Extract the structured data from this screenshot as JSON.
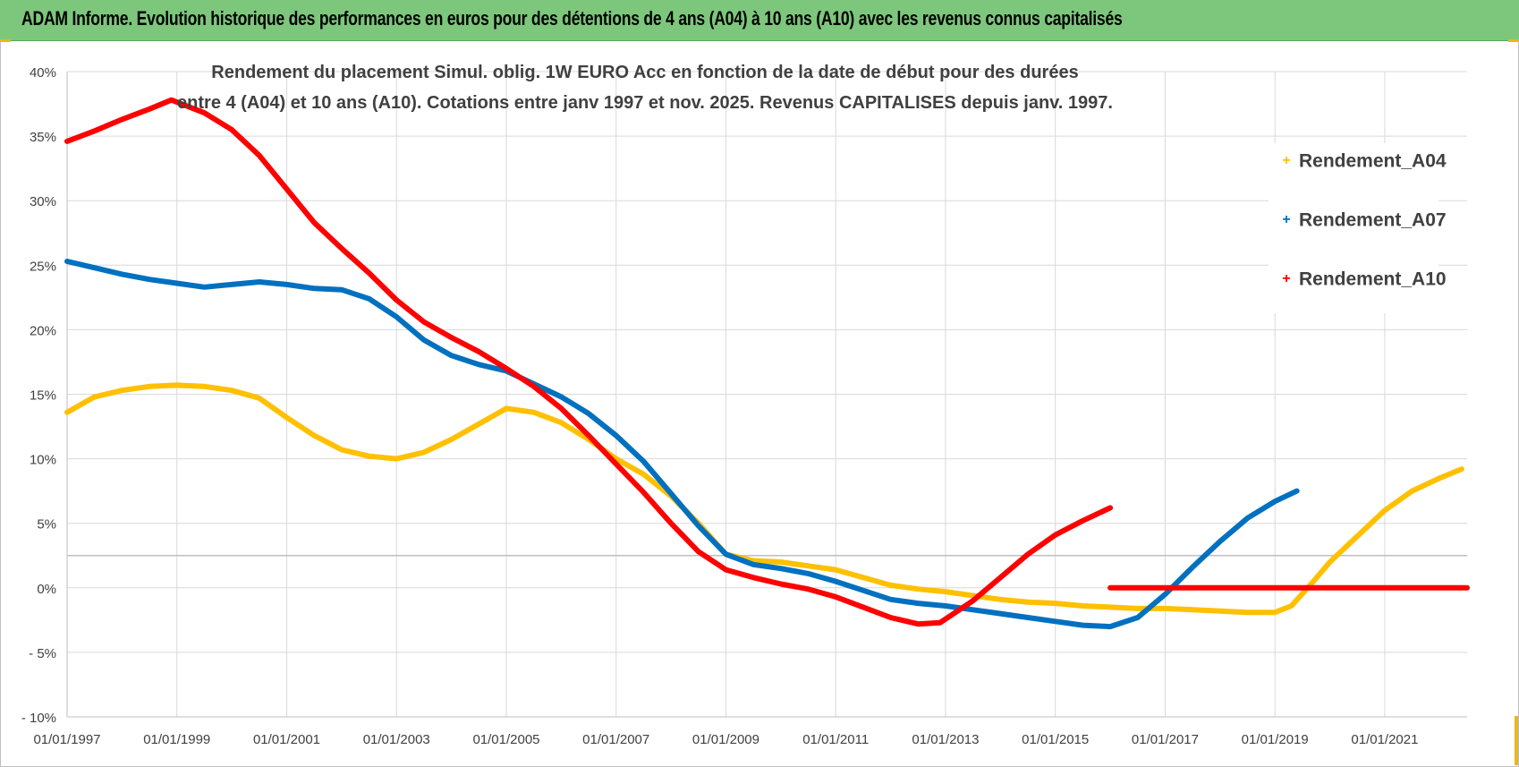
{
  "banner": {
    "title": "ADAM Informe. Evolution historique des performances en euros pour des détentions de 4 ans (A04) à 10 ans (A10) avec les revenus connus capitalisés"
  },
  "colors": {
    "banner_bg": "#7dc77c",
    "A04": "#ffc000",
    "A07": "#0070c0",
    "A10": "#ff0000",
    "grid": "#d9d9d9",
    "axis_text": "#404040"
  },
  "chart_data": {
    "type": "line",
    "title_line1": "Rendement du placement Simul. oblig. 1W EURO Acc en fonction de la date de début pour des durées",
    "title_line2": "entre 4 (A04) et 10 ans (A10). Cotations entre janv 1997 et nov. 2025. Revenus CAPITALISES depuis janv. 1997.",
    "xlabel": "",
    "ylabel": "",
    "x_range": [
      1997.0,
      2022.5
    ],
    "x_tick_years": [
      1997,
      1999,
      2001,
      2003,
      2005,
      2007,
      2009,
      2011,
      2013,
      2015,
      2017,
      2019,
      2021
    ],
    "x_tick_labels": [
      "01/01/1997",
      "01/01/1999",
      "01/01/2001",
      "01/01/2003",
      "01/01/2005",
      "01/01/2007",
      "01/01/2009",
      "01/01/2011",
      "01/01/2013",
      "01/01/2015",
      "01/01/2017",
      "01/01/2019",
      "01/01/2021"
    ],
    "ylim": [
      -10,
      40
    ],
    "y_ticks": [
      40,
      35,
      30,
      25,
      20,
      15,
      10,
      5,
      0,
      -5,
      -10
    ],
    "y_tick_labels": [
      "40%",
      "35%",
      "30%",
      "25%",
      "20%",
      "15%",
      "10%",
      "5%",
      "0%",
      "- 5%",
      "- 10%"
    ],
    "extra_reference_line_y": 2.5,
    "legend_position": "right",
    "series": [
      {
        "name": "Rendement_A04",
        "color": "#ffc000",
        "points": [
          [
            1997.0,
            13.6
          ],
          [
            1997.5,
            14.8
          ],
          [
            1998.0,
            15.3
          ],
          [
            1998.5,
            15.6
          ],
          [
            1999.0,
            15.7
          ],
          [
            1999.5,
            15.6
          ],
          [
            2000.0,
            15.3
          ],
          [
            2000.5,
            14.7
          ],
          [
            2001.0,
            13.2
          ],
          [
            2001.5,
            11.8
          ],
          [
            2002.0,
            10.7
          ],
          [
            2002.5,
            10.2
          ],
          [
            2003.0,
            10.0
          ],
          [
            2003.5,
            10.5
          ],
          [
            2004.0,
            11.5
          ],
          [
            2004.5,
            12.7
          ],
          [
            2005.0,
            13.9
          ],
          [
            2005.5,
            13.6
          ],
          [
            2006.0,
            12.8
          ],
          [
            2006.5,
            11.5
          ],
          [
            2007.0,
            10.0
          ],
          [
            2007.5,
            8.8
          ],
          [
            2008.0,
            7.1
          ],
          [
            2008.5,
            5.0
          ],
          [
            2009.0,
            2.6
          ],
          [
            2009.5,
            2.1
          ],
          [
            2010.0,
            2.0
          ],
          [
            2010.5,
            1.7
          ],
          [
            2011.0,
            1.4
          ],
          [
            2011.5,
            0.8
          ],
          [
            2012.0,
            0.2
          ],
          [
            2012.5,
            -0.1
          ],
          [
            2013.0,
            -0.3
          ],
          [
            2013.5,
            -0.6
          ],
          [
            2014.0,
            -0.9
          ],
          [
            2014.5,
            -1.1
          ],
          [
            2015.0,
            -1.2
          ],
          [
            2015.5,
            -1.4
          ],
          [
            2016.0,
            -1.5
          ],
          [
            2016.5,
            -1.6
          ],
          [
            2017.0,
            -1.6
          ],
          [
            2017.5,
            -1.7
          ],
          [
            2018.0,
            -1.8
          ],
          [
            2018.5,
            -1.9
          ],
          [
            2019.0,
            -1.9
          ],
          [
            2019.3,
            -1.4
          ],
          [
            2019.7,
            0.5
          ],
          [
            2020.0,
            2.0
          ],
          [
            2020.5,
            4.0
          ],
          [
            2021.0,
            6.0
          ],
          [
            2021.5,
            7.5
          ],
          [
            2022.0,
            8.5
          ],
          [
            2022.4,
            9.2
          ]
        ]
      },
      {
        "name": "Rendement_A07",
        "color": "#0070c0",
        "points": [
          [
            1997.0,
            25.3
          ],
          [
            1997.5,
            24.8
          ],
          [
            1998.0,
            24.3
          ],
          [
            1998.5,
            23.9
          ],
          [
            1999.0,
            23.6
          ],
          [
            1999.5,
            23.3
          ],
          [
            2000.0,
            23.5
          ],
          [
            2000.5,
            23.7
          ],
          [
            2001.0,
            23.5
          ],
          [
            2001.5,
            23.2
          ],
          [
            2002.0,
            23.1
          ],
          [
            2002.5,
            22.4
          ],
          [
            2003.0,
            21.0
          ],
          [
            2003.5,
            19.2
          ],
          [
            2004.0,
            18.0
          ],
          [
            2004.5,
            17.3
          ],
          [
            2005.0,
            16.8
          ],
          [
            2005.5,
            15.8
          ],
          [
            2006.0,
            14.8
          ],
          [
            2006.5,
            13.5
          ],
          [
            2007.0,
            11.8
          ],
          [
            2007.5,
            9.8
          ],
          [
            2008.0,
            7.3
          ],
          [
            2008.5,
            4.8
          ],
          [
            2009.0,
            2.6
          ],
          [
            2009.5,
            1.8
          ],
          [
            2010.0,
            1.5
          ],
          [
            2010.5,
            1.1
          ],
          [
            2011.0,
            0.5
          ],
          [
            2011.5,
            -0.2
          ],
          [
            2012.0,
            -0.9
          ],
          [
            2012.5,
            -1.2
          ],
          [
            2013.0,
            -1.4
          ],
          [
            2013.5,
            -1.7
          ],
          [
            2014.0,
            -2.0
          ],
          [
            2014.5,
            -2.3
          ],
          [
            2015.0,
            -2.6
          ],
          [
            2015.5,
            -2.9
          ],
          [
            2016.0,
            -3.0
          ],
          [
            2016.5,
            -2.3
          ],
          [
            2017.0,
            -0.5
          ],
          [
            2017.5,
            1.6
          ],
          [
            2018.0,
            3.6
          ],
          [
            2018.5,
            5.4
          ],
          [
            2019.0,
            6.7
          ],
          [
            2019.4,
            7.5
          ]
        ]
      },
      {
        "name": "Rendement_A10",
        "color": "#ff0000",
        "points": [
          [
            1997.0,
            34.6
          ],
          [
            1997.5,
            35.4
          ],
          [
            1998.0,
            36.3
          ],
          [
            1998.5,
            37.1
          ],
          [
            1998.9,
            37.8
          ],
          [
            1999.5,
            36.8
          ],
          [
            2000.0,
            35.5
          ],
          [
            2000.5,
            33.5
          ],
          [
            2001.0,
            30.9
          ],
          [
            2001.5,
            28.3
          ],
          [
            2002.0,
            26.3
          ],
          [
            2002.5,
            24.4
          ],
          [
            2003.0,
            22.3
          ],
          [
            2003.5,
            20.6
          ],
          [
            2004.0,
            19.4
          ],
          [
            2004.5,
            18.3
          ],
          [
            2005.0,
            17.0
          ],
          [
            2005.5,
            15.6
          ],
          [
            2006.0,
            13.9
          ],
          [
            2006.5,
            11.8
          ],
          [
            2007.0,
            9.6
          ],
          [
            2007.5,
            7.4
          ],
          [
            2008.0,
            5.0
          ],
          [
            2008.5,
            2.8
          ],
          [
            2009.0,
            1.4
          ],
          [
            2009.5,
            0.8
          ],
          [
            2010.0,
            0.3
          ],
          [
            2010.5,
            -0.1
          ],
          [
            2011.0,
            -0.7
          ],
          [
            2011.5,
            -1.5
          ],
          [
            2012.0,
            -2.3
          ],
          [
            2012.5,
            -2.8
          ],
          [
            2012.9,
            -2.7
          ],
          [
            2013.5,
            -1.0
          ],
          [
            2014.0,
            0.8
          ],
          [
            2014.5,
            2.6
          ],
          [
            2015.0,
            4.1
          ],
          [
            2015.5,
            5.2
          ],
          [
            2016.0,
            6.2
          ]
        ],
        "segment_2": [
          [
            2016.0,
            0.0
          ],
          [
            2017.0,
            0.0
          ],
          [
            2018.0,
            0.0
          ],
          [
            2019.0,
            0.0
          ],
          [
            2020.0,
            0.0
          ],
          [
            2021.0,
            0.0
          ],
          [
            2022.0,
            0.0
          ],
          [
            2022.5,
            0.0
          ]
        ]
      }
    ]
  },
  "legend": {
    "items": [
      {
        "label": "Rendement_A04",
        "marker": "+"
      },
      {
        "label": "Rendement_A07",
        "marker": "+"
      },
      {
        "label": "Rendement_A10",
        "marker": "+"
      }
    ]
  }
}
